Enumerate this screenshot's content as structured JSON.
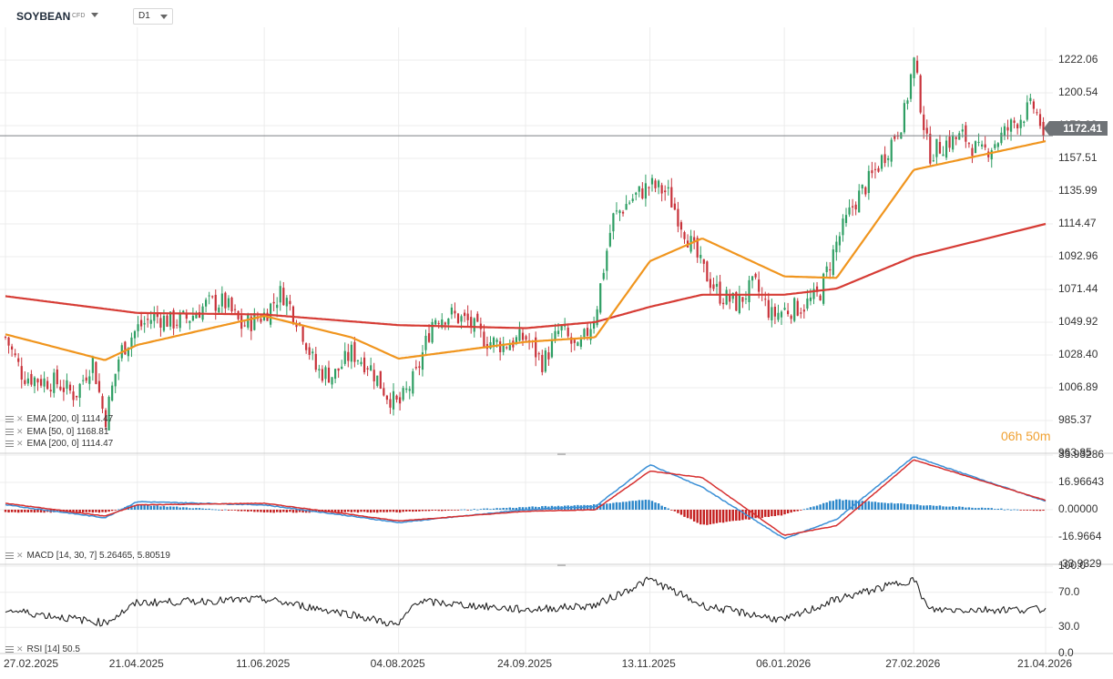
{
  "toolbar": {
    "symbol": "SOYBEAN",
    "symbol_type": "CFD",
    "timeframe": "D1"
  },
  "price_axis_labels": [
    "1222.06",
    "1200.54",
    "1179.03",
    "1157.51",
    "1135.99",
    "1114.47",
    "1092.96",
    "1071.44",
    "1049.92",
    "1028.40",
    "1006.89",
    "985.37",
    "963.85"
  ],
  "current_price": "1172.41",
  "countdown": "06h 50m",
  "macd_axis_labels": [
    "33.93286",
    "16.96643",
    "0.00000",
    "-16.9664",
    "-33.9329"
  ],
  "rsi_axis_labels": [
    "100.0",
    "70.0",
    "30.0",
    "0.0"
  ],
  "date_labels": [
    "27.02.2025",
    "21.04.2025",
    "11.06.2025",
    "04.08.2025",
    "24.09.2025",
    "13.11.2025",
    "06.01.2026",
    "27.02.2026",
    "21.04.2026"
  ],
  "indicators": {
    "ema1": "EMA [200, 0] 1114.47",
    "ema2": "EMA [50, 0] 1168.81",
    "ema3": "EMA [200, 0] 1114.47",
    "macd": "MACD [14, 30, 7] 5.26465, 5.80519",
    "rsi": "RSI [14] 50.5"
  },
  "colors": {
    "up": "#2e9e63",
    "down": "#c8323a",
    "ema50": "#f0951e",
    "ema200": "#d63c35",
    "macd_line": "#3a8fd6",
    "signal_line": "#d62f2f",
    "hist_pos": "#2a86c9",
    "hist_neg": "#c41f1f",
    "rsi_line": "#222222",
    "grid": "#ececec"
  },
  "chart_data": [
    {
      "type": "candlestick",
      "title": "SOYBEAN",
      "ylim": [
        963.85,
        1243.58
      ],
      "x_range": [
        "27.02.2025",
        "21.04.2026"
      ],
      "close_path": [
        [
          "27.02.2025",
          1040
        ],
        [
          "06.03.2025",
          1015
        ],
        [
          "13.03.2025",
          1012
        ],
        [
          "20.03.2025",
          1010
        ],
        [
          "27.03.2025",
          1002
        ],
        [
          "03.04.2025",
          1025
        ],
        [
          "08.04.2025",
          985
        ],
        [
          "14.04.2025",
          1030
        ],
        [
          "21.04.2025",
          1046
        ],
        [
          "28.04.2025",
          1054
        ],
        [
          "05.05.2025",
          1050
        ],
        [
          "12.05.2025",
          1053
        ],
        [
          "19.05.2025",
          1062
        ],
        [
          "26.05.2025",
          1063
        ],
        [
          "02.06.2025",
          1047
        ],
        [
          "11.06.2025",
          1055
        ],
        [
          "18.06.2025",
          1070
        ],
        [
          "25.06.2025",
          1050
        ],
        [
          "02.07.2025",
          1018
        ],
        [
          "09.07.2025",
          1015
        ],
        [
          "16.07.2025",
          1030
        ],
        [
          "23.07.2025",
          1022
        ],
        [
          "30.07.2025",
          1003
        ],
        [
          "04.08.2025",
          995
        ],
        [
          "11.08.2025",
          1015
        ],
        [
          "18.08.2025",
          1053
        ],
        [
          "25.08.2025",
          1055
        ],
        [
          "01.09.2025",
          1050
        ],
        [
          "08.09.2025",
          1038
        ],
        [
          "15.09.2025",
          1035
        ],
        [
          "24.09.2025",
          1040
        ],
        [
          "01.10.2025",
          1023
        ],
        [
          "08.10.2025",
          1046
        ],
        [
          "15.10.2025",
          1030
        ],
        [
          "22.10.2025",
          1055
        ],
        [
          "29.10.2025",
          1118
        ],
        [
          "05.11.2025",
          1130
        ],
        [
          "13.11.2025",
          1140
        ],
        [
          "20.11.2025",
          1135
        ],
        [
          "27.11.2025",
          1110
        ],
        [
          "04.12.2025",
          1085
        ],
        [
          "11.12.2025",
          1068
        ],
        [
          "18.12.2025",
          1062
        ],
        [
          "25.12.2025",
          1075
        ],
        [
          "01.01.2026",
          1054
        ],
        [
          "06.01.2026",
          1058
        ],
        [
          "13.01.2026",
          1060
        ],
        [
          "20.01.2026",
          1068
        ],
        [
          "27.01.2026",
          1102
        ],
        [
          "03.02.2026",
          1128
        ],
        [
          "10.02.2026",
          1145
        ],
        [
          "17.02.2026",
          1165
        ],
        [
          "23.02.2026",
          1185
        ],
        [
          "27.02.2026",
          1222
        ],
        [
          "05.03.2026",
          1160
        ],
        [
          "12.03.2026",
          1168
        ],
        [
          "19.03.2026",
          1172
        ],
        [
          "26.03.2026",
          1160
        ],
        [
          "02.04.2026",
          1170
        ],
        [
          "09.04.2026",
          1182
        ],
        [
          "16.04.2026",
          1192
        ],
        [
          "21.04.2026",
          1172.41
        ]
      ],
      "overlays": [
        {
          "name": "EMA [50, 0]",
          "end_value": 1168.81,
          "points": [
            [
              "27.02.2025",
              1042
            ],
            [
              "08.04.2025",
              1025
            ],
            [
              "21.04.2025",
              1035
            ],
            [
              "11.06.2025",
              1054
            ],
            [
              "16.07.2025",
              1040
            ],
            [
              "04.08.2025",
              1026
            ],
            [
              "24.09.2025",
              1037
            ],
            [
              "22.10.2025",
              1040
            ],
            [
              "13.11.2025",
              1090
            ],
            [
              "04.12.2025",
              1105
            ],
            [
              "06.01.2026",
              1080
            ],
            [
              "27.01.2026",
              1079
            ],
            [
              "27.02.2026",
              1150
            ],
            [
              "21.04.2026",
              1168.81
            ]
          ]
        },
        {
          "name": "EMA [200, 0]",
          "end_value": 1114.47,
          "points": [
            [
              "27.02.2025",
              1067
            ],
            [
              "21.04.2025",
              1056
            ],
            [
              "11.06.2025",
              1055
            ],
            [
              "04.08.2025",
              1048
            ],
            [
              "24.09.2025",
              1046
            ],
            [
              "22.10.2025",
              1050
            ],
            [
              "13.11.2025",
              1060
            ],
            [
              "04.12.2025",
              1068
            ],
            [
              "06.01.2026",
              1068
            ],
            [
              "27.01.2026",
              1072
            ],
            [
              "27.02.2026",
              1093
            ],
            [
              "21.04.2026",
              1114.47
            ]
          ]
        }
      ]
    },
    {
      "type": "area",
      "title": "MACD [14, 30, 7]",
      "ylim": [
        -33.9329,
        33.93286
      ],
      "macd_value": 5.26465,
      "signal_value": 5.80519,
      "macd_path": [
        [
          "27.02.2025",
          3
        ],
        [
          "08.04.2025",
          -5
        ],
        [
          "21.04.2025",
          5
        ],
        [
          "11.06.2025",
          3
        ],
        [
          "16.07.2025",
          -4
        ],
        [
          "04.08.2025",
          -8
        ],
        [
          "24.09.2025",
          0
        ],
        [
          "22.10.2025",
          2
        ],
        [
          "13.11.2025",
          28
        ],
        [
          "04.12.2025",
          14
        ],
        [
          "06.01.2026",
          -18
        ],
        [
          "27.01.2026",
          -6
        ],
        [
          "27.02.2026",
          33
        ],
        [
          "21.04.2026",
          5.26
        ]
      ],
      "signal_path": [
        [
          "27.02.2025",
          4
        ],
        [
          "08.04.2025",
          -4
        ],
        [
          "21.04.2025",
          3
        ],
        [
          "11.06.2025",
          4
        ],
        [
          "16.07.2025",
          -3
        ],
        [
          "04.08.2025",
          -7
        ],
        [
          "24.09.2025",
          -1
        ],
        [
          "22.10.2025",
          0
        ],
        [
          "13.11.2025",
          24
        ],
        [
          "04.12.2025",
          20
        ],
        [
          "06.01.2026",
          -16
        ],
        [
          "27.01.2026",
          -10
        ],
        [
          "27.02.2026",
          31
        ],
        [
          "21.04.2026",
          5.81
        ]
      ]
    },
    {
      "type": "line",
      "title": "RSI [14]",
      "ylim": [
        0,
        100
      ],
      "last_value": 50.5,
      "path": [
        [
          "27.02.2025",
          50
        ],
        [
          "08.04.2025",
          35
        ],
        [
          "21.04.2025",
          58
        ],
        [
          "11.06.2025",
          62
        ],
        [
          "16.07.2025",
          45
        ],
        [
          "04.08.2025",
          32
        ],
        [
          "11.08.2025",
          60
        ],
        [
          "24.09.2025",
          50
        ],
        [
          "22.10.2025",
          55
        ],
        [
          "13.11.2025",
          85
        ],
        [
          "04.12.2025",
          55
        ],
        [
          "06.01.2026",
          38
        ],
        [
          "27.01.2026",
          62
        ],
        [
          "23.02.2026",
          82
        ],
        [
          "27.02.2026",
          85
        ],
        [
          "05.03.2026",
          50
        ],
        [
          "21.04.2026",
          50.5
        ]
      ]
    }
  ]
}
